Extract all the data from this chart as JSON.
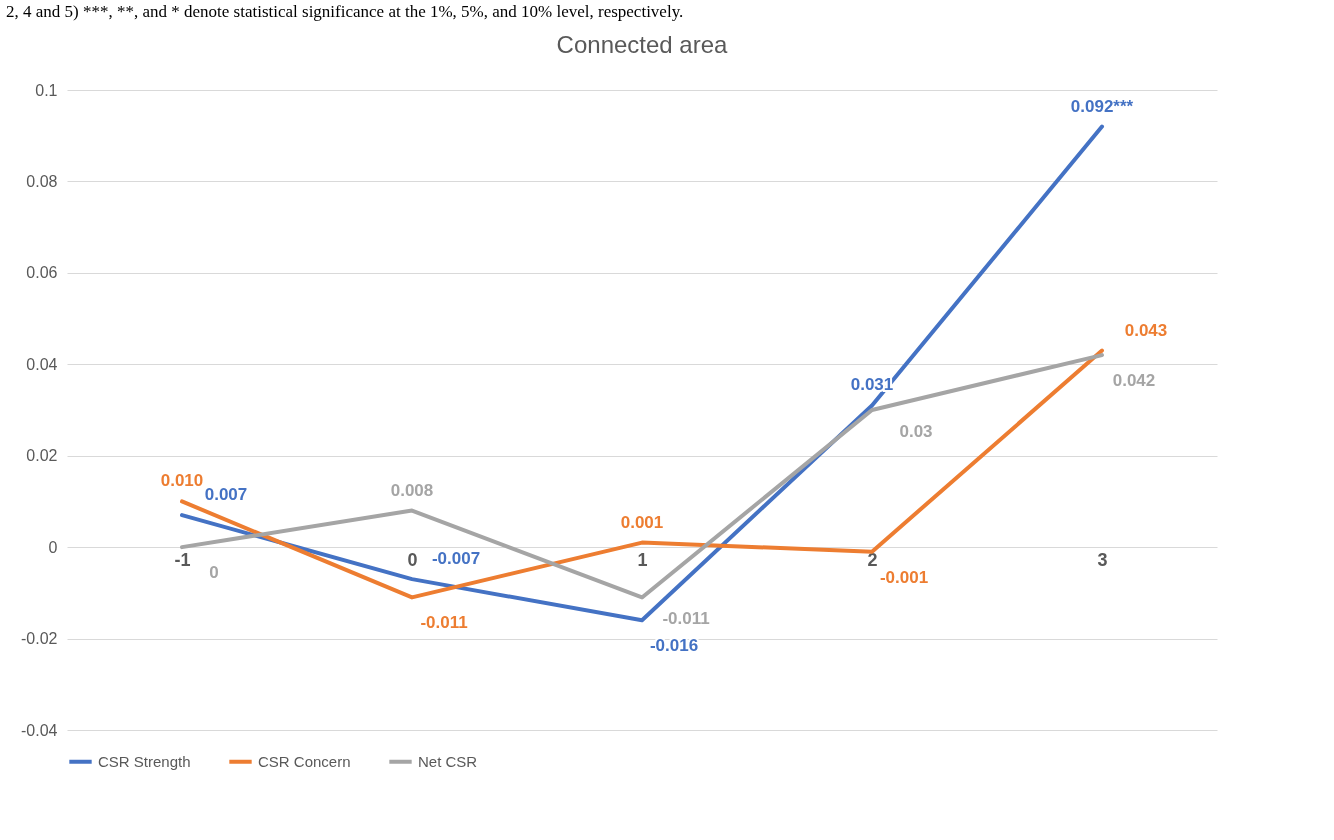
{
  "chart_data": {
    "type": "line",
    "title": "Connected area",
    "annotations": [
      "2, 4 and 5) ***, **, and * denote statistical significance at the 1%, 5%, and 10% level, respectively."
    ],
    "categories": [
      "-1",
      "0",
      "1",
      "2",
      "3"
    ],
    "series": [
      {
        "name": "CSR Strength",
        "color": "#4472c4",
        "values": [
          0.007,
          -0.007,
          -0.016,
          0.031,
          0.092
        ],
        "value_labels": [
          "0.007",
          "-0.007",
          "-0.016",
          "0.031",
          "0.092***"
        ]
      },
      {
        "name": "CSR Concern",
        "color": "#ed7d31",
        "values": [
          0.01,
          -0.011,
          0.001,
          -0.001,
          0.043
        ],
        "value_labels": [
          "0.010",
          "-0.011",
          "0.001",
          "-0.001",
          "0.043"
        ]
      },
      {
        "name": "Net CSR",
        "color": "#a5a5a5",
        "values": [
          0,
          0.008,
          -0.011,
          0.03,
          0.042
        ],
        "value_labels": [
          "0",
          "0.008",
          "-0.011",
          "0.03",
          "0.042"
        ]
      }
    ],
    "ylim": [
      -0.04,
      0.1
    ],
    "yticks": [
      -0.04,
      -0.02,
      0,
      0.02,
      0.04,
      0.06,
      0.08,
      0.1
    ],
    "grid": "y",
    "legend": "bottom",
    "marker": "none",
    "line_style": "solid"
  }
}
